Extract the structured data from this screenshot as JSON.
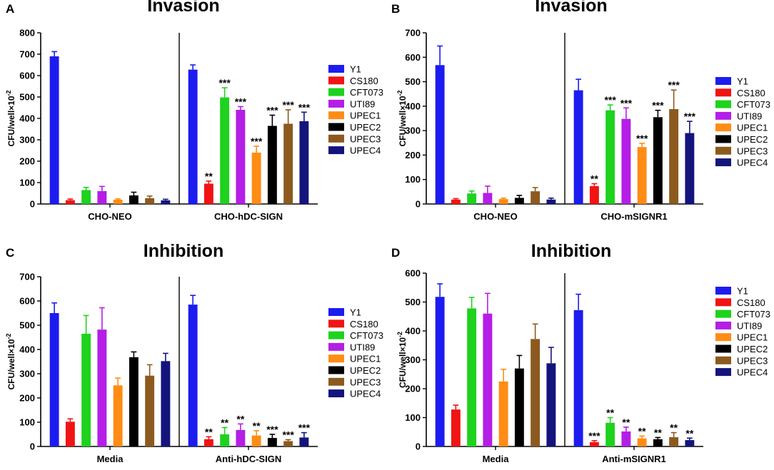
{
  "y_axis_label": "CFU/well×10",
  "y_axis_exponent": "-2",
  "colors": [
    "#1c1cf0",
    "#f01414",
    "#1ed21e",
    "#b41ee6",
    "#ff8c14",
    "#000000",
    "#8c5a1e",
    "#14147d"
  ],
  "chart_data": [
    {
      "type": "bar",
      "panel_letter": "A",
      "title": "Invasion",
      "ylim": [
        0,
        800
      ],
      "yticks": [
        0,
        100,
        200,
        300,
        400,
        500,
        600,
        700,
        800
      ],
      "legend": [
        "Y1",
        "CS180",
        "CFT073",
        "UTI89",
        "UPEC1",
        "UPEC2",
        "UPEC3",
        "UPEC4"
      ],
      "groups": [
        {
          "label": "CHO-NEO",
          "values": [
            690,
            18,
            65,
            60,
            20,
            40,
            27,
            17
          ],
          "errors": [
            22,
            5,
            12,
            22,
            4,
            15,
            10,
            5
          ],
          "sig": [
            "",
            "",
            "",
            "",
            "",
            "",
            "",
            ""
          ]
        },
        {
          "label": "CHO-hDC-SIGN",
          "values": [
            628,
            95,
            498,
            440,
            240,
            365,
            375,
            387
          ],
          "errors": [
            22,
            12,
            45,
            15,
            30,
            50,
            65,
            42
          ],
          "sig": [
            "",
            "**",
            "***",
            "***",
            "***",
            "***",
            "***",
            "***"
          ]
        }
      ]
    },
    {
      "type": "bar",
      "panel_letter": "B",
      "title": "Invasion",
      "ylim": [
        0,
        700
      ],
      "yticks": [
        0,
        100,
        200,
        300,
        400,
        500,
        600,
        700
      ],
      "legend": [
        "Y1",
        "CS180",
        "CFT073",
        "UTI89",
        "UPEC1",
        "UPEC2",
        "UPEC3",
        "UPEC4"
      ],
      "groups": [
        {
          "label": "CHO-NEO",
          "values": [
            568,
            18,
            43,
            45,
            20,
            25,
            52,
            18
          ],
          "errors": [
            78,
            4,
            10,
            28,
            4,
            10,
            15,
            6
          ],
          "sig": [
            "",
            "",
            "",
            "",
            "",
            "",
            "",
            ""
          ]
        },
        {
          "label": "CHO-mSIGNR1",
          "values": [
            465,
            73,
            383,
            348,
            233,
            355,
            388,
            290
          ],
          "errors": [
            45,
            10,
            22,
            45,
            15,
            28,
            78,
            48
          ],
          "sig": [
            "",
            "**",
            "***",
            "***",
            "***",
            "***",
            "***",
            "***"
          ]
        }
      ]
    },
    {
      "type": "bar",
      "panel_letter": "C",
      "title": "Inhibition",
      "ylim": [
        0,
        700
      ],
      "yticks": [
        0,
        100,
        200,
        300,
        400,
        500,
        600,
        700
      ],
      "legend": [
        "Y1",
        "CS180",
        "CFT073",
        "UTI89",
        "UPEC1",
        "UPEC2",
        "UPEC3",
        "UPEC4"
      ],
      "groups": [
        {
          "label": "Media",
          "values": [
            550,
            102,
            465,
            482,
            252,
            368,
            292,
            352
          ],
          "errors": [
            42,
            12,
            75,
            90,
            30,
            22,
            45,
            32
          ],
          "sig": [
            "",
            "",
            "",
            "",
            "",
            "",
            "",
            ""
          ]
        },
        {
          "label": "Anti-hDC-SIGN",
          "values": [
            585,
            30,
            50,
            68,
            45,
            35,
            22,
            37
          ],
          "errors": [
            38,
            10,
            28,
            25,
            20,
            15,
            6,
            20
          ],
          "sig": [
            "",
            "**",
            "**",
            "**",
            "**",
            "***",
            "***",
            "***"
          ]
        }
      ]
    },
    {
      "type": "bar",
      "panel_letter": "D",
      "title": "Inhibition",
      "ylim": [
        0,
        600
      ],
      "yticks": [
        0,
        100,
        200,
        300,
        400,
        500,
        600
      ],
      "legend": [
        "Y1",
        "CS180",
        "CFT073",
        "UTI89",
        "UPEC1",
        "UPEC2",
        "UPEC3",
        "UPEC4"
      ],
      "groups": [
        {
          "label": "Media",
          "values": [
            518,
            128,
            478,
            460,
            225,
            270,
            372,
            288
          ],
          "errors": [
            45,
            15,
            38,
            70,
            42,
            45,
            52,
            55
          ],
          "sig": [
            "",
            "",
            "",
            "",
            "",
            "",
            "",
            ""
          ]
        },
        {
          "label": "Anti-mSIGNR1",
          "values": [
            472,
            15,
            82,
            52,
            28,
            25,
            32,
            22
          ],
          "errors": [
            55,
            5,
            18,
            15,
            8,
            6,
            16,
            7
          ],
          "sig": [
            "",
            "***",
            "**",
            "**",
            "**",
            "**",
            "**",
            "**"
          ]
        }
      ]
    }
  ]
}
